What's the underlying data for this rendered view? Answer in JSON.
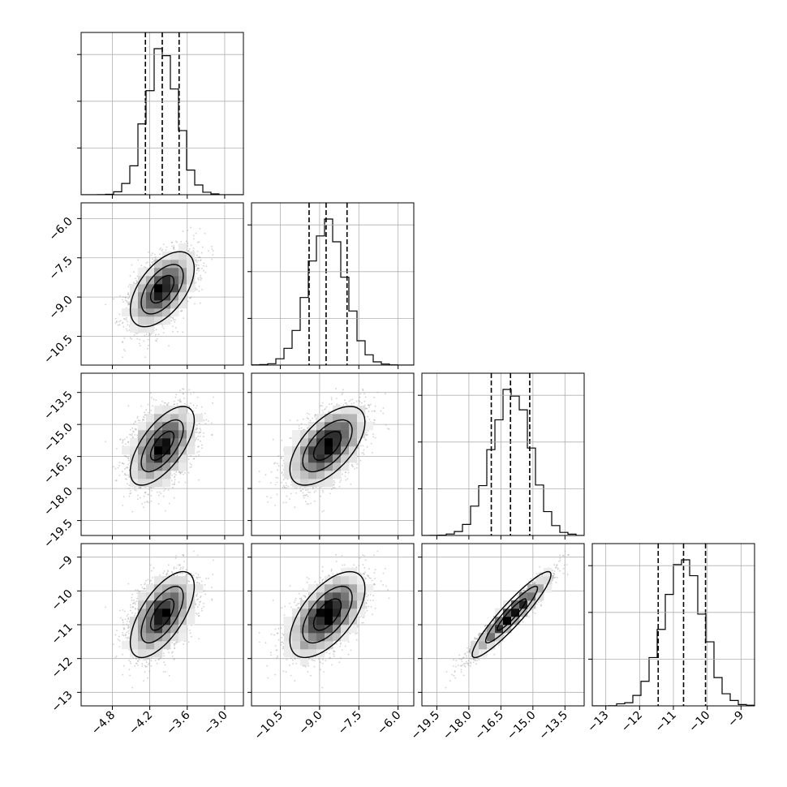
{
  "chart_data": {
    "type": "corner",
    "grid": true,
    "parameters": [
      {
        "range": [
          -5.3,
          -2.7
        ],
        "ticks": [
          -4.8,
          -4.2,
          -3.6,
          -3.0
        ],
        "tick_labels": [
          "−4.8",
          "−4.2",
          "−3.6",
          "−3.0"
        ],
        "quantiles": [
          -4.27,
          -4.0,
          -3.73
        ],
        "mean": -4.0,
        "sd": 0.25
      },
      {
        "range": [
          -11.6,
          -5.4
        ],
        "ticks": [
          -10.5,
          -9.0,
          -7.5,
          -6.0
        ],
        "tick_labels": [
          "−10.5",
          "−9.0",
          "−7.5",
          "−6.0"
        ],
        "quantiles": [
          -9.4,
          -8.75,
          -7.95
        ],
        "mean": -8.7,
        "sd": 0.7
      },
      {
        "range": [
          -20.2,
          -12.6
        ],
        "ticks": [
          -19.5,
          -18.0,
          -16.5,
          -15.0,
          -13.5
        ],
        "tick_labels": [
          "−19.5",
          "−18.0",
          "−16.5",
          "−15.0",
          "−13.5"
        ],
        "quantiles": [
          -16.95,
          -16.05,
          -15.15
        ],
        "mean": -16.0,
        "sd": 0.9
      },
      {
        "range": [
          -13.4,
          -8.6
        ],
        "ticks": [
          -13,
          -12,
          -11,
          -10,
          -9
        ],
        "tick_labels": [
          "−13",
          "−12",
          "−11",
          "−10",
          "−9"
        ],
        "quantiles": [
          -11.45,
          -10.7,
          -10.05
        ],
        "mean": -10.7,
        "sd": 0.62
      }
    ],
    "correlations": {
      "0-1": 0.55,
      "0-2": 0.65,
      "0-3": 0.65,
      "1-2": 0.6,
      "1-3": 0.6,
      "2-3": 0.93
    }
  }
}
